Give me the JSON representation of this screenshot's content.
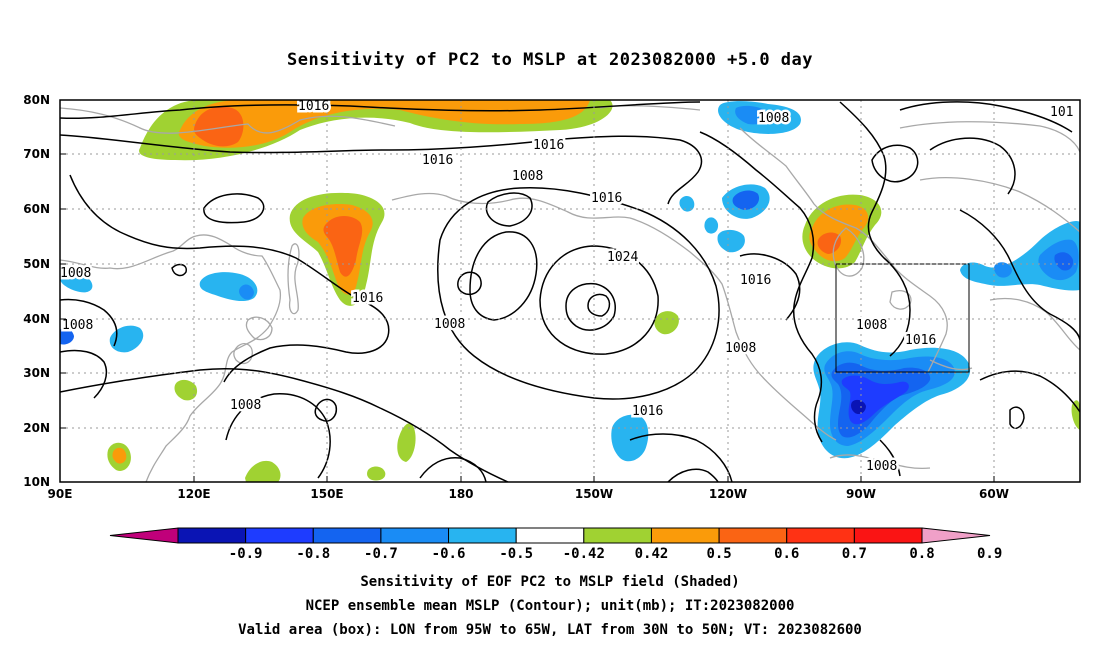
{
  "title": "Sensitivity of PC2 to MSLP at 2023082000 +5.0 day",
  "lat_ticks": [
    "80N",
    "70N",
    "60N",
    "50N",
    "40N",
    "30N",
    "20N",
    "10N"
  ],
  "lon_ticks": [
    "90E",
    "120E",
    "150E",
    "180",
    "150W",
    "120W",
    "90W",
    "60W"
  ],
  "contour_labels": [
    "1016",
    "1016",
    "1016",
    "1016",
    "1016",
    "1016",
    "1016",
    "1016",
    "1008",
    "1008",
    "1008",
    "1008",
    "1008",
    "1008",
    "1008",
    "1008",
    "1008",
    "1024",
    "101"
  ],
  "colorbar": {
    "labels": [
      "-0.9",
      "-0.8",
      "-0.7",
      "-0.6",
      "-0.5",
      "-0.42",
      "0.42",
      "0.5",
      "0.6",
      "0.7",
      "0.8",
      "0.9"
    ],
    "colors": [
      "#c0007a",
      "#0a14b4",
      "#1e3cff",
      "#1464f0",
      "#1a8cf5",
      "#28b4f0",
      "#ffffff",
      "#a0d232",
      "#fa9b0a",
      "#fa6414",
      "#ff3214",
      "#fa1414",
      "#f0a0c8"
    ]
  },
  "caption": {
    "line1": "Sensitivity of EOF PC2 to MSLP field (Shaded)",
    "line2": "NCEP ensemble mean MSLP (Contour); unit(mb); IT:2023082000",
    "line3": "Valid area (box): LON from 95W to 65W, LAT from 30N to 50N; VT: 2023082600"
  }
}
